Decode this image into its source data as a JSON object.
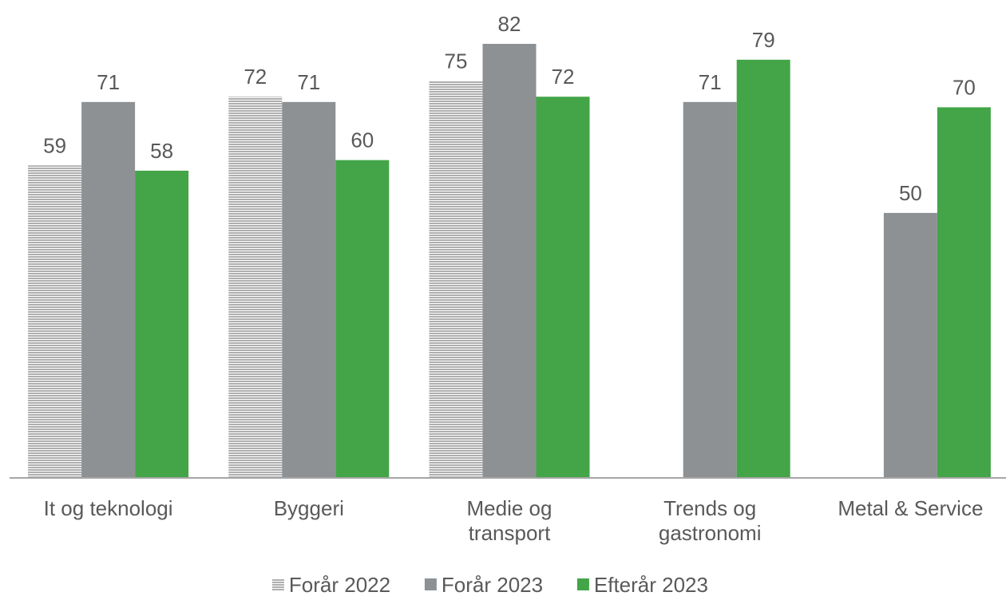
{
  "chart_data": {
    "type": "bar",
    "categories": [
      "It og teknologi",
      "Byggeri",
      "Medie og transport",
      "Trends og gastronomi",
      "Metal & Service"
    ],
    "series": [
      {
        "name": "Forår 2022",
        "color": "#a0a0a0",
        "hatch": true,
        "values": [
          59,
          72,
          75,
          null,
          null
        ]
      },
      {
        "name": "Forår 2023",
        "color": "#8e9194",
        "values": [
          71,
          71,
          82,
          71,
          50
        ]
      },
      {
        "name": "Efterår 2023",
        "color": "#43a548",
        "values": [
          58,
          60,
          72,
          79,
          70
        ]
      }
    ],
    "ylim": [
      0,
      90
    ],
    "legend": "bottom"
  }
}
